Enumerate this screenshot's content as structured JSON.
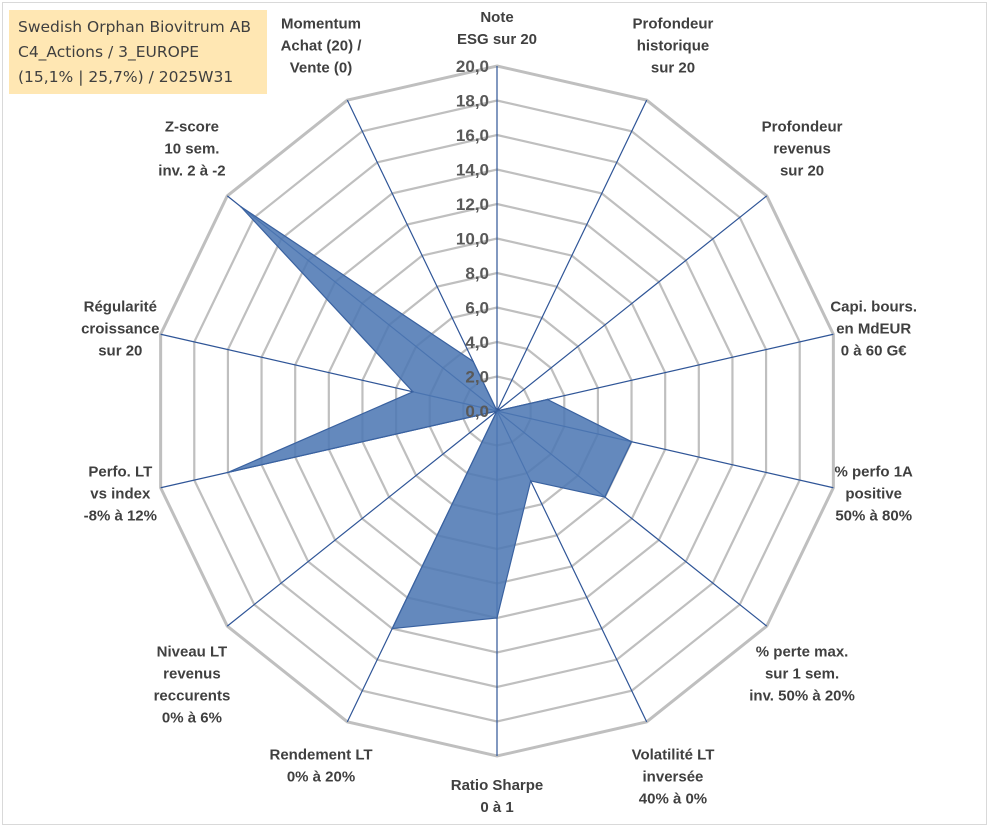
{
  "title_box": {
    "line1": "Swedish Orphan Biovitrum AB",
    "line2": "C4_Actions / 3_EUROPE",
    "line3": "(15,1% | 25,7%) / 2025W31"
  },
  "chart_data": {
    "type": "radar",
    "scale_min": 0,
    "scale_max": 20,
    "tick_step": 2,
    "tick_labels": [
      "0,0",
      "2,0",
      "4,0",
      "6,0",
      "8,0",
      "10,0",
      "12,0",
      "14,0",
      "16,0",
      "18,0",
      "20,0"
    ],
    "axes": [
      {
        "lines": [
          "Note",
          "ESG sur 20"
        ]
      },
      {
        "lines": [
          "Profondeur",
          "historique",
          "sur 20"
        ]
      },
      {
        "lines": [
          "Profondeur",
          "revenus",
          "sur 20"
        ]
      },
      {
        "lines": [
          "Capi. bours.",
          "en MdEUR",
          "0 à 60 G€"
        ]
      },
      {
        "lines": [
          "% perfo 1A",
          "positive",
          "50% à 80%"
        ]
      },
      {
        "lines": [
          "% perte max.",
          "sur 1 sem.",
          "inv. 50% à 20%"
        ]
      },
      {
        "lines": [
          "Volatilité LT",
          "inversée",
          "40% à 0%"
        ]
      },
      {
        "lines": [
          "Ratio Sharpe",
          "0 à 1"
        ]
      },
      {
        "lines": [
          "Rendement LT",
          "0% à 20%"
        ]
      },
      {
        "lines": [
          "Niveau LT",
          "revenus",
          "reccurents",
          "0% à 6%"
        ]
      },
      {
        "lines": [
          "Perfo. LT",
          "vs index",
          "-8% à 12%"
        ]
      },
      {
        "lines": [
          "Régularité",
          "croissance",
          "sur 20"
        ]
      },
      {
        "lines": [
          "Z-score",
          "10 sem.",
          "inv. 2 à -2"
        ]
      },
      {
        "lines": [
          "Momentum",
          "Achat (20) /",
          "Vente (0)"
        ]
      }
    ],
    "series": [
      {
        "values": [
          0.0,
          0.0,
          0.0,
          3.0,
          8.0,
          8.0,
          4.5,
          12.0,
          14.0,
          0.0,
          16.0,
          5.0,
          19.0,
          3.2
        ]
      }
    ],
    "colors": {
      "fill": "#4e79b4",
      "stroke": "#3a62a0",
      "grid": "#bfbfbf",
      "spoke": "#2f5597"
    }
  }
}
